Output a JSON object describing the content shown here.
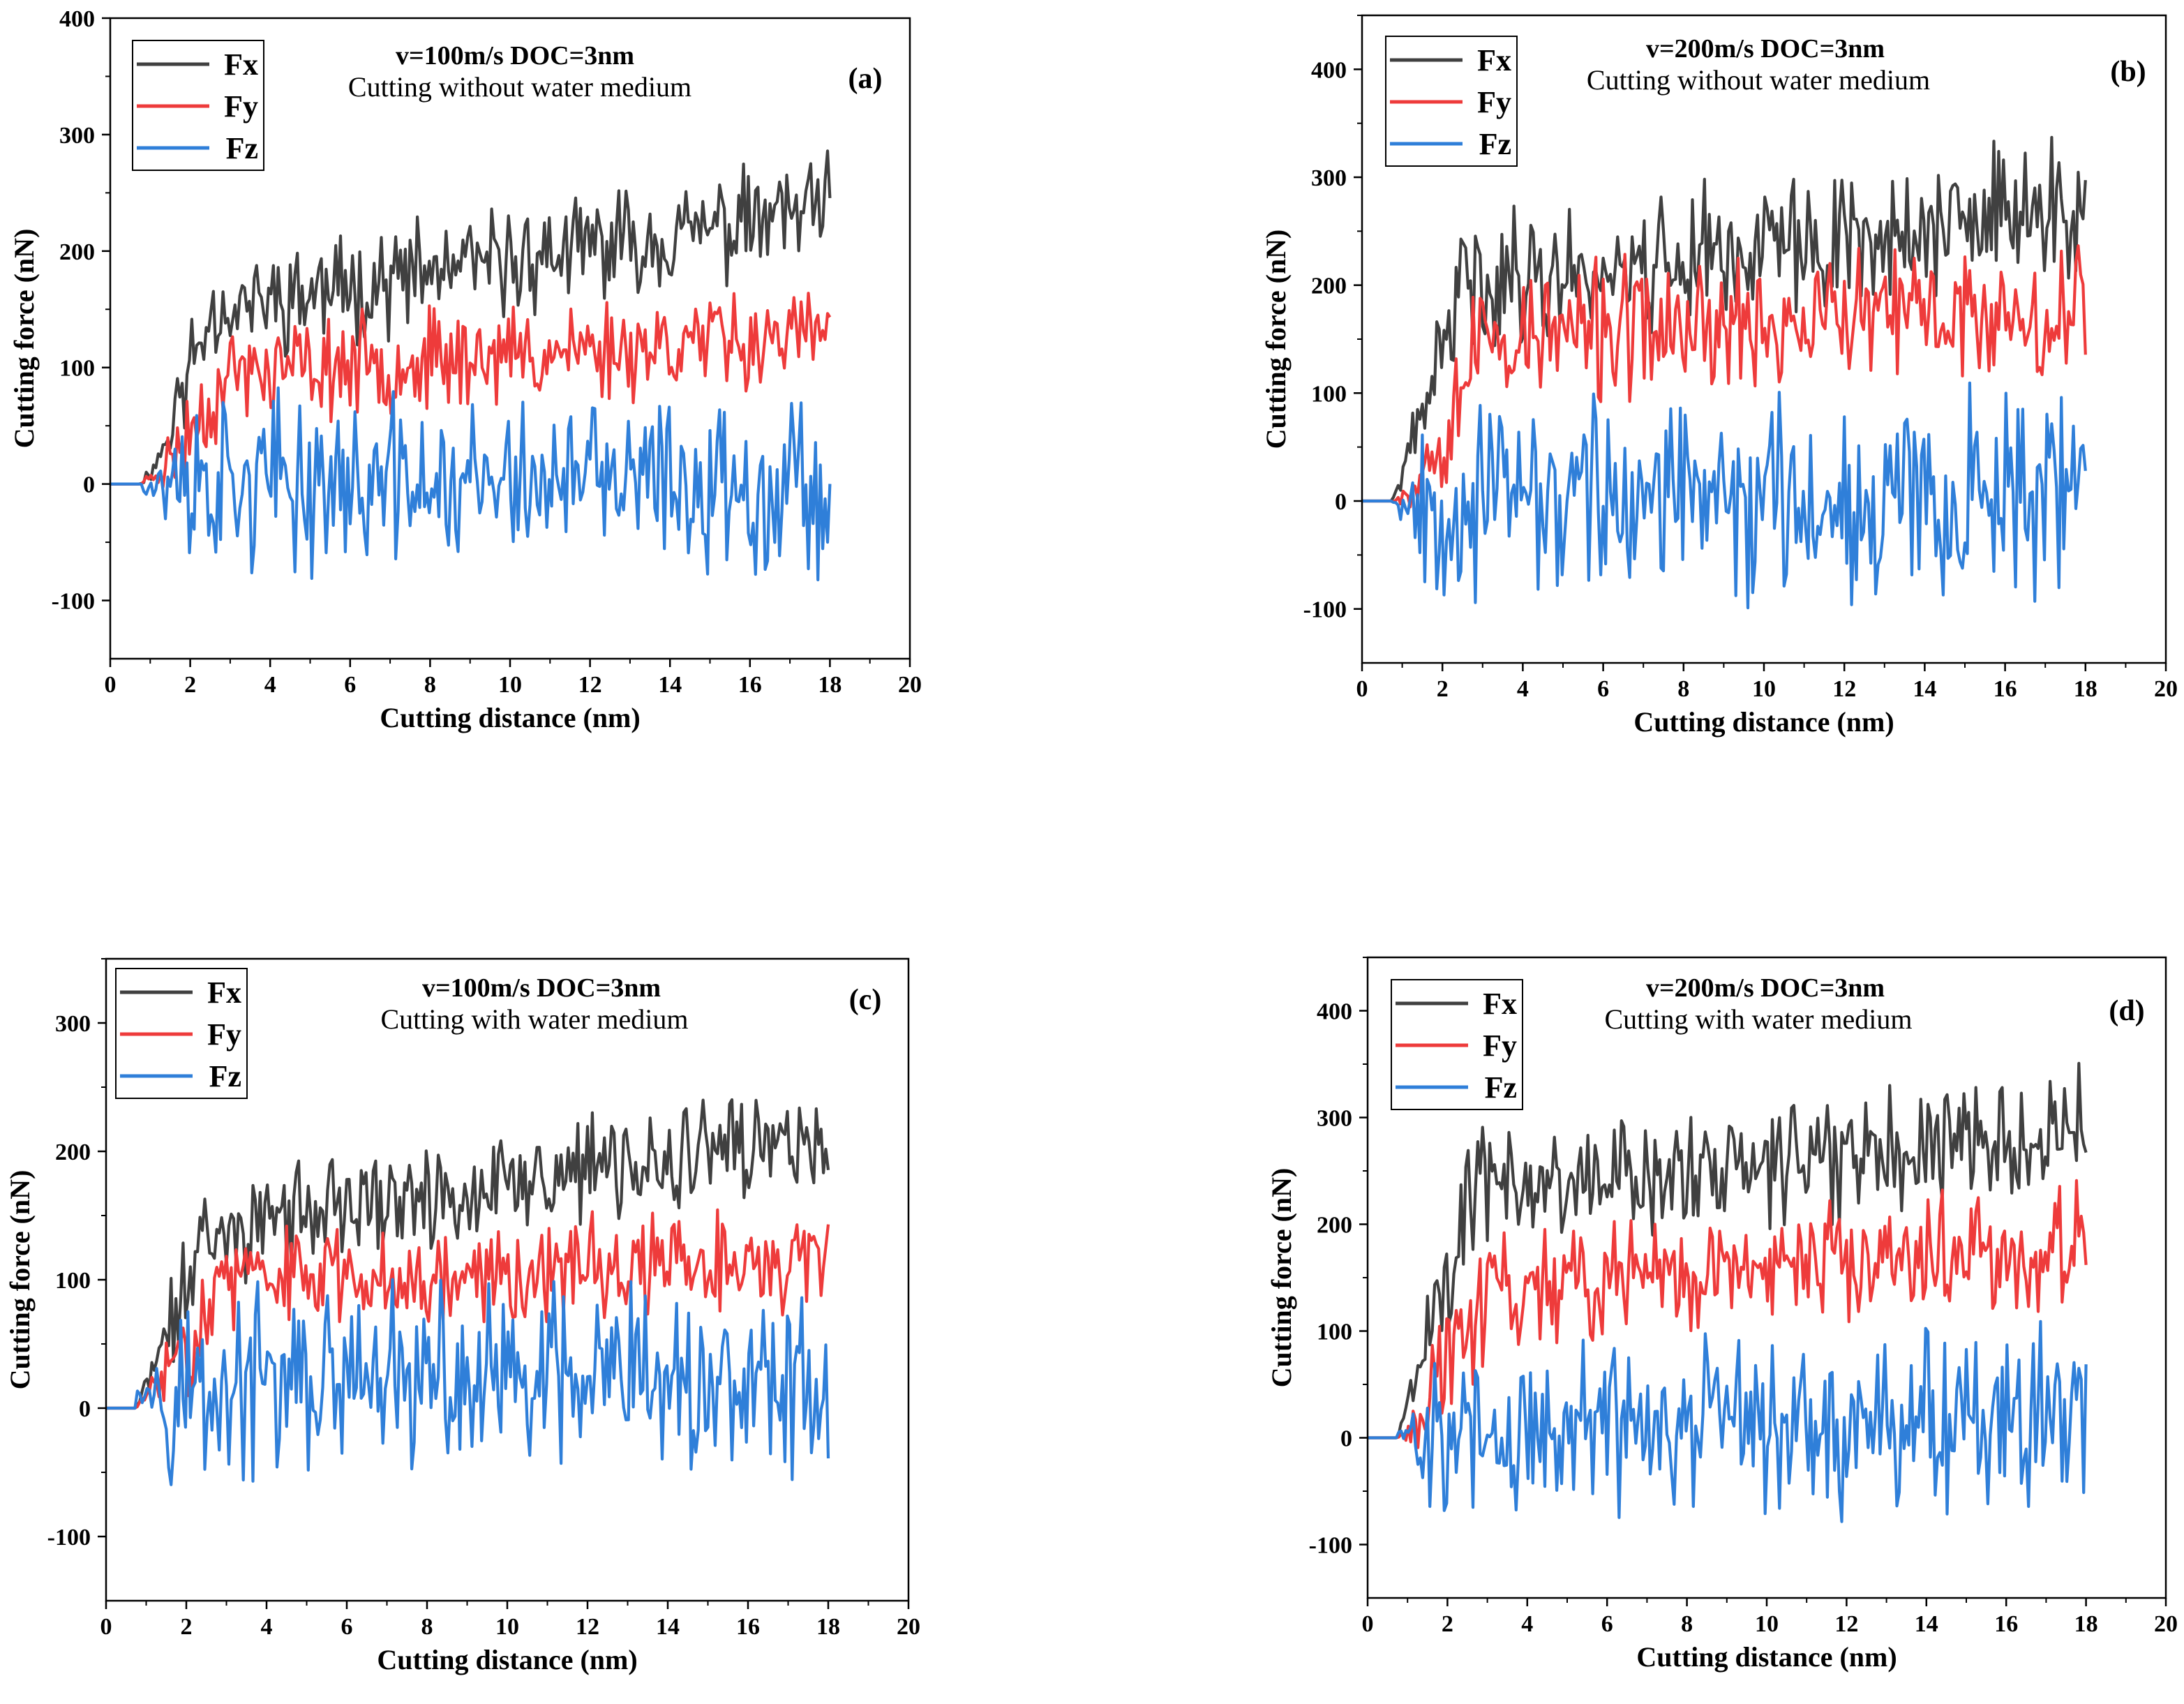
{
  "figure": {
    "panels": [
      "a",
      "b",
      "c",
      "d"
    ]
  },
  "chart_data": [
    {
      "id": "a",
      "type": "line",
      "title": "v=100m/s DOC=3nm",
      "subtitle": "Cutting without water medium",
      "panel_label": "(a)",
      "xlabel": "Cutting distance (nm)",
      "ylabel": "Cutting force (nN)",
      "xlim": [
        0,
        20
      ],
      "ylim": [
        -150,
        400
      ],
      "xticks": [
        0,
        2,
        4,
        6,
        8,
        10,
        12,
        14,
        16,
        18,
        20
      ],
      "yticks": [
        -100,
        0,
        100,
        200,
        300,
        400
      ],
      "legend": [
        "Fx",
        "Fy",
        "Fz"
      ],
      "legend_position": "top-left",
      "series": [
        {
          "name": "Fx",
          "color": "#404040",
          "ramp_end": 2.5,
          "plateau": 150,
          "growth": 85,
          "amp": 34,
          "dip": -25,
          "seed": 11
        },
        {
          "name": "Fy",
          "color": "#ee3b3b",
          "ramp_end": 3.0,
          "plateau": 95,
          "growth": 35,
          "amp": 32,
          "dip": -15,
          "seed": 23
        },
        {
          "name": "Fz",
          "color": "#2f7fd9",
          "ramp_end": 0,
          "plateau": 0,
          "growth": 0,
          "amp": 55,
          "dip": 0,
          "seed": 37
        }
      ]
    },
    {
      "id": "b",
      "type": "line",
      "title": "v=200m/s DOC=3nm",
      "subtitle": "Cutting without water medium",
      "panel_label": "(b)",
      "xlabel": "Cutting distance (nm)",
      "ylabel": "Cutting force (nN)",
      "xlim": [
        0,
        20
      ],
      "ylim": [
        -150,
        450
      ],
      "xticks": [
        0,
        2,
        4,
        6,
        8,
        10,
        12,
        14,
        16,
        18,
        20
      ],
      "yticks": [
        -100,
        0,
        100,
        200,
        300,
        400
      ],
      "legend": [
        "Fx",
        "Fy",
        "Fz"
      ],
      "legend_position": "top-left",
      "series": [
        {
          "name": "Fx",
          "color": "#404040",
          "ramp_end": 2.5,
          "plateau": 200,
          "growth": 70,
          "amp": 48,
          "dip": -10,
          "seed": 41
        },
        {
          "name": "Fy",
          "color": "#ee3b3b",
          "ramp_end": 3.0,
          "plateau": 150,
          "growth": 30,
          "amp": 48,
          "dip": -30,
          "seed": 53
        },
        {
          "name": "Fz",
          "color": "#2f7fd9",
          "ramp_end": 0,
          "plateau": 0,
          "growth": 10,
          "amp": 68,
          "dip": 0,
          "seed": 67
        }
      ]
    },
    {
      "id": "c",
      "type": "line",
      "title": "v=100m/s DOC=3nm",
      "subtitle": "Cutting with water medium",
      "panel_label": "(c)",
      "xlabel": "Cutting distance (nm)",
      "ylabel": "Cutting force (nN)",
      "xlim": [
        0,
        20
      ],
      "ylim": [
        -150,
        350
      ],
      "xticks": [
        0,
        2,
        4,
        6,
        8,
        10,
        12,
        14,
        16,
        18,
        20
      ],
      "yticks": [
        -100,
        0,
        100,
        200,
        300
      ],
      "legend": [
        "Fx",
        "Fy",
        "Fz"
      ],
      "legend_position": "top-left",
      "series": [
        {
          "name": "Fx",
          "color": "#404040",
          "ramp_end": 2.5,
          "plateau": 140,
          "growth": 70,
          "amp": 32,
          "dip": -5,
          "seed": 71
        },
        {
          "name": "Fy",
          "color": "#ee3b3b",
          "ramp_end": 3.0,
          "plateau": 100,
          "growth": 15,
          "amp": 30,
          "dip": -5,
          "seed": 83
        },
        {
          "name": "Fz",
          "color": "#2f7fd9",
          "ramp_end": 0,
          "plateau": 15,
          "growth": 5,
          "amp": 55,
          "dip": 0,
          "seed": 97
        }
      ]
    },
    {
      "id": "d",
      "type": "line",
      "title": "v=200m/s DOC=3nm",
      "subtitle": "Cutting with water medium",
      "panel_label": "(d)",
      "xlabel": "Cutting distance (nm)",
      "ylabel": "Cutting force (nN)",
      "xlim": [
        0,
        20
      ],
      "ylim": [
        -150,
        450
      ],
      "xticks": [
        0,
        2,
        4,
        6,
        8,
        10,
        12,
        14,
        16,
        18,
        20
      ],
      "yticks": [
        -100,
        0,
        100,
        200,
        300,
        400
      ],
      "legend": [
        "Fx",
        "Fy",
        "Fz"
      ],
      "legend_position": "top-left",
      "series": [
        {
          "name": "Fx",
          "color": "#404040",
          "ramp_end": 2.5,
          "plateau": 230,
          "growth": 60,
          "amp": 45,
          "dip": 0,
          "seed": 101
        },
        {
          "name": "Fy",
          "color": "#ee3b3b",
          "ramp_end": 3.0,
          "plateau": 140,
          "growth": 40,
          "amp": 45,
          "dip": -20,
          "seed": 113
        },
        {
          "name": "Fz",
          "color": "#2f7fd9",
          "ramp_end": 0,
          "plateau": 5,
          "growth": 15,
          "amp": 62,
          "dip": 0,
          "seed": 127
        }
      ]
    }
  ]
}
